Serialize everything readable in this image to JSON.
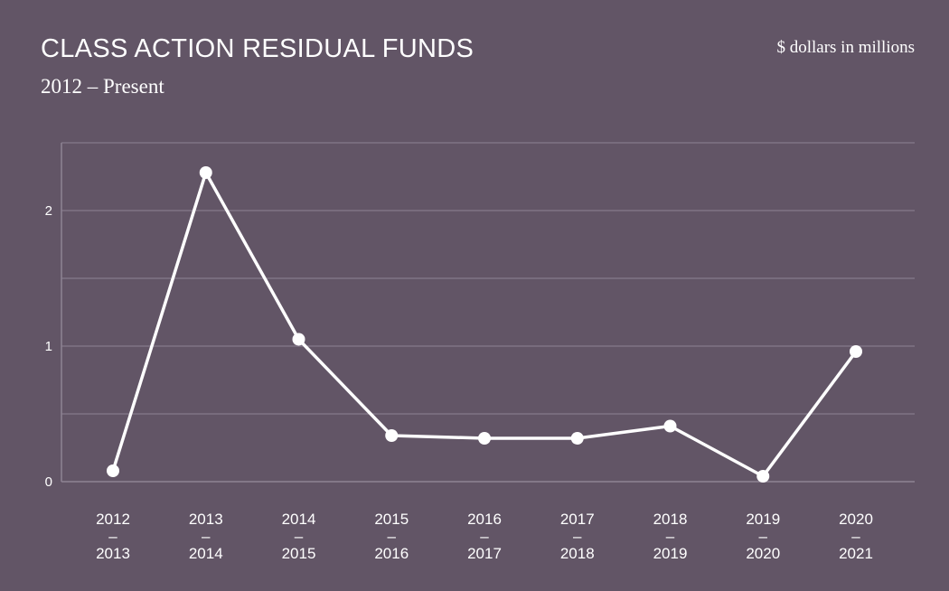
{
  "header": {
    "title": "CLASS ACTION RESIDUAL FUNDS",
    "subtitle": "2012 – Present",
    "units": "$ dollars in millions"
  },
  "colors": {
    "background": "#625566",
    "line": "#ffffff",
    "grid": "#8e8394"
  },
  "chart_data": {
    "type": "line",
    "title": "CLASS ACTION RESIDUAL FUNDS",
    "subtitle": "2012 – Present",
    "xlabel": "",
    "ylabel": "$ dollars in millions",
    "ylim": [
      0,
      2.5
    ],
    "yticks": [
      0,
      1,
      2
    ],
    "grid": true,
    "categories": [
      [
        "2012",
        "–",
        "2013"
      ],
      [
        "2013",
        "–",
        "2014"
      ],
      [
        "2014",
        "–",
        "2015"
      ],
      [
        "2015",
        "–",
        "2016"
      ],
      [
        "2016",
        "–",
        "2017"
      ],
      [
        "2017",
        "–",
        "2018"
      ],
      [
        "2018",
        "–",
        "2019"
      ],
      [
        "2019",
        "–",
        "2020"
      ],
      [
        "2020",
        "–",
        "2021"
      ]
    ],
    "series": [
      {
        "values": [
          0.08,
          2.28,
          1.05,
          0.34,
          0.32,
          0.32,
          0.41,
          0.04,
          0.96
        ]
      }
    ]
  }
}
